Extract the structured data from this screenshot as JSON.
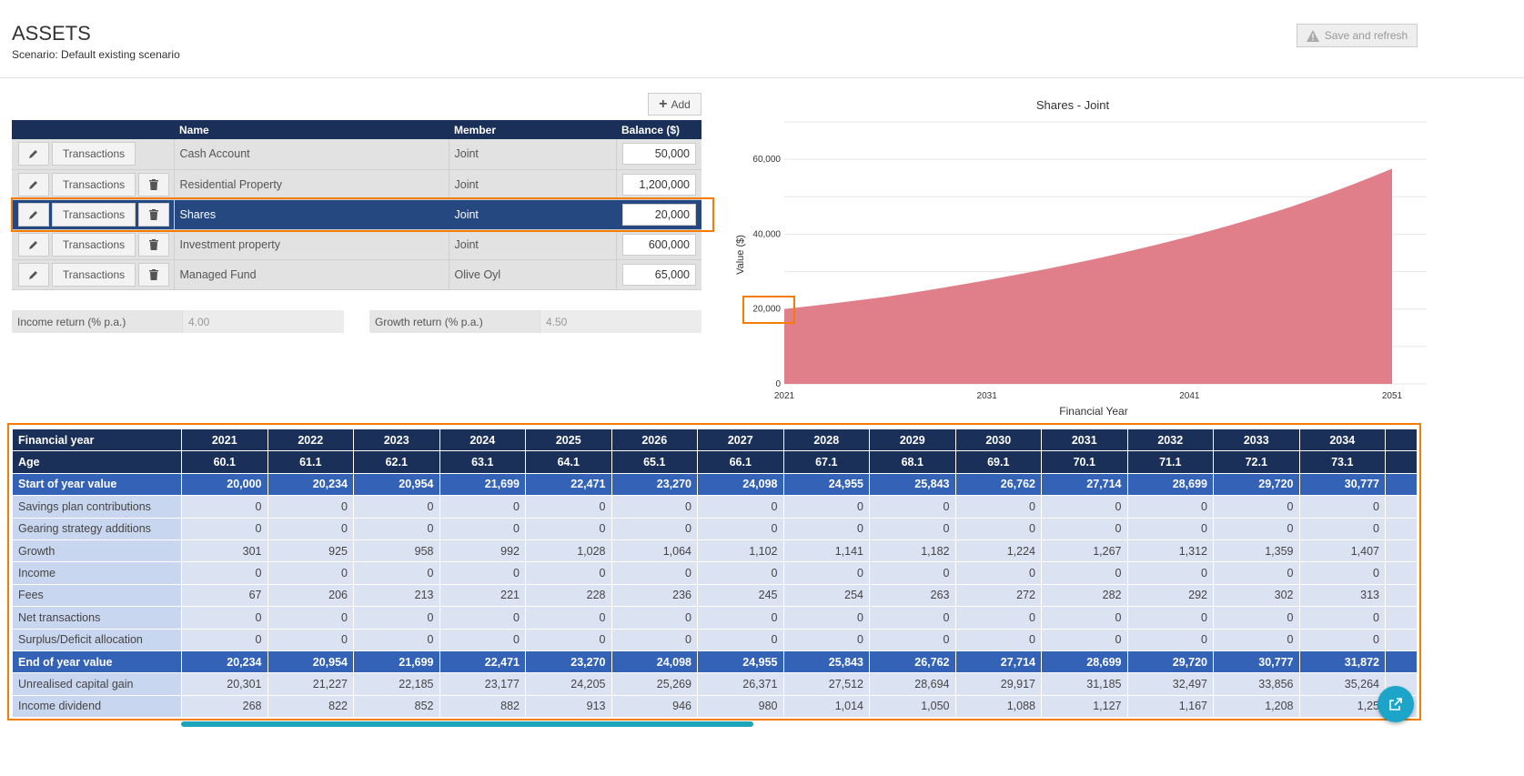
{
  "header": {
    "title": "ASSETS",
    "subtitle": "Scenario: Default existing scenario",
    "save_label": "Save and refresh",
    "save_icon": "warning-icon"
  },
  "assets": {
    "add_label": "Add",
    "columns": [
      "Name",
      "Member",
      "Balance ($)"
    ],
    "transactions_label": "Transactions",
    "rows": [
      {
        "name": "Cash Account",
        "member": "Joint",
        "balance": "50,000",
        "deletable": false,
        "selected": false
      },
      {
        "name": "Residential Property",
        "member": "Joint",
        "balance": "1,200,000",
        "deletable": true,
        "selected": false
      },
      {
        "name": "Shares",
        "member": "Joint",
        "balance": "20,000",
        "deletable": true,
        "selected": true
      },
      {
        "name": "Investment property",
        "member": "Joint",
        "balance": "600,000",
        "deletable": true,
        "selected": false
      },
      {
        "name": "Managed Fund",
        "member": "Olive Oyl",
        "balance": "65,000",
        "deletable": true,
        "selected": false
      }
    ]
  },
  "returns": {
    "income_label": "Income return (% p.a.)",
    "income_value": "4.00",
    "growth_label": "Growth return (% p.a.)",
    "growth_value": "4.50"
  },
  "chart_data": {
    "type": "area",
    "title": "Shares - Joint",
    "xlabel": "Financial Year",
    "ylabel": "Value ($)",
    "color": "#e07f89",
    "x": [
      2021,
      2026,
      2031,
      2036,
      2041,
      2046,
      2051
    ],
    "values": [
      20000,
      23270,
      27714,
      33000,
      39400,
      47300,
      57500
    ],
    "xlim": [
      2021,
      2051
    ],
    "ylim": [
      0,
      70000
    ],
    "xticks": [
      "2021",
      "2031",
      "2041",
      "2051"
    ],
    "yticks": [
      "0",
      "20,000",
      "40,000",
      "60,000"
    ],
    "grid": true
  },
  "projection": {
    "header": {
      "label": "Financial year",
      "values": [
        "2021",
        "2022",
        "2023",
        "2024",
        "2025",
        "2026",
        "2027",
        "2028",
        "2029",
        "2030",
        "2031",
        "2032",
        "2033",
        "2034"
      ]
    },
    "rows": [
      {
        "label": "Age",
        "style": "hd",
        "values": [
          "60.1",
          "61.1",
          "62.1",
          "63.1",
          "64.1",
          "65.1",
          "66.1",
          "67.1",
          "68.1",
          "69.1",
          "70.1",
          "71.1",
          "72.1",
          "73.1"
        ]
      },
      {
        "label": "Start of year value",
        "style": "hl",
        "values": [
          "20,000",
          "20,234",
          "20,954",
          "21,699",
          "22,471",
          "23,270",
          "24,098",
          "24,955",
          "25,843",
          "26,762",
          "27,714",
          "28,699",
          "29,720",
          "30,777"
        ]
      },
      {
        "label": "Savings plan contributions",
        "style": "",
        "values": [
          "0",
          "0",
          "0",
          "0",
          "0",
          "0",
          "0",
          "0",
          "0",
          "0",
          "0",
          "0",
          "0",
          "0"
        ]
      },
      {
        "label": "Gearing strategy additions",
        "style": "",
        "values": [
          "0",
          "0",
          "0",
          "0",
          "0",
          "0",
          "0",
          "0",
          "0",
          "0",
          "0",
          "0",
          "0",
          "0"
        ]
      },
      {
        "label": "Growth",
        "style": "",
        "values": [
          "301",
          "925",
          "958",
          "992",
          "1,028",
          "1,064",
          "1,102",
          "1,141",
          "1,182",
          "1,224",
          "1,267",
          "1,312",
          "1,359",
          "1,407"
        ]
      },
      {
        "label": "Income",
        "style": "",
        "values": [
          "0",
          "0",
          "0",
          "0",
          "0",
          "0",
          "0",
          "0",
          "0",
          "0",
          "0",
          "0",
          "0",
          "0"
        ]
      },
      {
        "label": "Fees",
        "style": "",
        "values": [
          "67",
          "206",
          "213",
          "221",
          "228",
          "236",
          "245",
          "254",
          "263",
          "272",
          "282",
          "292",
          "302",
          "313"
        ]
      },
      {
        "label": "Net transactions",
        "style": "",
        "values": [
          "0",
          "0",
          "0",
          "0",
          "0",
          "0",
          "0",
          "0",
          "0",
          "0",
          "0",
          "0",
          "0",
          "0"
        ]
      },
      {
        "label": "Surplus/Deficit allocation",
        "style": "",
        "values": [
          "0",
          "0",
          "0",
          "0",
          "0",
          "0",
          "0",
          "0",
          "0",
          "0",
          "0",
          "0",
          "0",
          "0"
        ]
      },
      {
        "label": "End of year value",
        "style": "hl",
        "values": [
          "20,234",
          "20,954",
          "21,699",
          "22,471",
          "23,270",
          "24,098",
          "24,955",
          "25,843",
          "26,762",
          "27,714",
          "28,699",
          "29,720",
          "30,777",
          "31,872"
        ]
      },
      {
        "label": "Unrealised capital gain",
        "style": "",
        "values": [
          "20,301",
          "21,227",
          "22,185",
          "23,177",
          "24,205",
          "25,269",
          "26,371",
          "27,512",
          "28,694",
          "29,917",
          "31,185",
          "32,497",
          "33,856",
          "35,264"
        ]
      },
      {
        "label": "Income dividend",
        "style": "",
        "values": [
          "268",
          "822",
          "852",
          "882",
          "913",
          "946",
          "980",
          "1,014",
          "1,050",
          "1,088",
          "1,127",
          "1,167",
          "1,208",
          "1,25"
        ]
      }
    ]
  }
}
